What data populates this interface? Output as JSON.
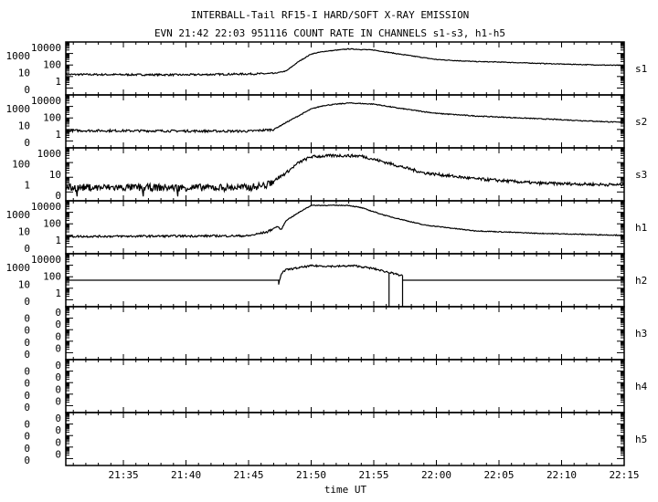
{
  "chart_data": {
    "type": "line",
    "title": "INTERBALL-Tail RF15-I HARD/SOFT X-RAY EMISSION",
    "subtitle": "EVN 21:42 22:03 951116  COUNT RATE IN CHANNELS s1-s3, h1-h5",
    "xlabel": "time UT",
    "x_unit": "minutes after 21:30 UT",
    "xlim": [
      0.4,
      45
    ],
    "x_ticks": [
      {
        "label": "21:35",
        "value": 5
      },
      {
        "label": "21:40",
        "value": 10
      },
      {
        "label": "21:45",
        "value": 15
      },
      {
        "label": "21:50",
        "value": 20
      },
      {
        "label": "21:55",
        "value": 25
      },
      {
        "label": "22:00",
        "value": 30
      },
      {
        "label": "22:05",
        "value": 35
      },
      {
        "label": "22:10",
        "value": 40
      },
      {
        "label": "22:15",
        "value": 45
      }
    ],
    "yscale": "log",
    "grid": false,
    "panels": [
      {
        "name": "s1",
        "ylim_top": 10000,
        "y_ticks": [
          "10000",
          "1000",
          "100",
          "10",
          "1",
          "0"
        ],
        "noise": 0.08,
        "points": [
          [
            0.4,
            15
          ],
          [
            10,
            14
          ],
          [
            17,
            18
          ],
          [
            18,
            30
          ],
          [
            19,
            200
          ],
          [
            20,
            900
          ],
          [
            21,
            1500
          ],
          [
            23,
            2500
          ],
          [
            25,
            2000
          ],
          [
            27,
            900
          ],
          [
            30,
            300
          ],
          [
            33,
            200
          ],
          [
            35,
            180
          ],
          [
            40,
            120
          ],
          [
            45,
            90
          ]
        ]
      },
      {
        "name": "s2",
        "ylim_top": 10000,
        "y_ticks": [
          "10000",
          "1000",
          "100",
          "10",
          "1",
          "0"
        ],
        "noise": 0.1,
        "points": [
          [
            0.4,
            8
          ],
          [
            15,
            7
          ],
          [
            17,
            10
          ],
          [
            18,
            40
          ],
          [
            20,
            600
          ],
          [
            21,
            1200
          ],
          [
            23,
            2000
          ],
          [
            25,
            1600
          ],
          [
            27,
            700
          ],
          [
            30,
            250
          ],
          [
            33,
            150
          ],
          [
            35,
            120
          ],
          [
            40,
            70
          ],
          [
            45,
            40
          ]
        ]
      },
      {
        "name": "s3",
        "ylim_top": 1000,
        "y_ticks": [
          "1000",
          "100",
          "10",
          "1",
          "0"
        ],
        "noise": 0.25,
        "points": [
          [
            0.4,
            2
          ],
          [
            15,
            2
          ],
          [
            16.5,
            3
          ],
          [
            18,
            20
          ],
          [
            19,
            100
          ],
          [
            20,
            250
          ],
          [
            22,
            300
          ],
          [
            24,
            280
          ],
          [
            26,
            100
          ],
          [
            29,
            20
          ],
          [
            33,
            8
          ],
          [
            38,
            4
          ],
          [
            45,
            3
          ]
        ]
      },
      {
        "name": "h1",
        "ylim_top": 10000,
        "y_ticks": [
          "10000",
          "1000",
          "100",
          "10",
          "1",
          "0"
        ],
        "noise": 0.09,
        "points": [
          [
            0.4,
            8
          ],
          [
            15,
            9
          ],
          [
            16.5,
            20
          ],
          [
            17.3,
            60
          ],
          [
            17.6,
            30
          ],
          [
            18,
            200
          ],
          [
            19.5,
            2000
          ],
          [
            20,
            4000
          ],
          [
            23,
            4000
          ],
          [
            24,
            2500
          ],
          [
            26,
            500
          ],
          [
            29,
            80
          ],
          [
            33,
            25
          ],
          [
            38,
            15
          ],
          [
            45,
            10
          ]
        ]
      },
      {
        "name": "h2",
        "ylim_top": 10000,
        "y_ticks": [
          "10000",
          "1000",
          "100",
          "10",
          "1",
          "0"
        ],
        "noise": 0.08,
        "baseline": 50,
        "points": [
          [
            17.4,
            20
          ],
          [
            17.6,
            200
          ],
          [
            18,
            400
          ],
          [
            20,
            900
          ],
          [
            22,
            800
          ],
          [
            23.5,
            900
          ],
          [
            25,
            500
          ],
          [
            26.5,
            200
          ],
          [
            27.3,
            120
          ]
        ]
      },
      {
        "name": "h3",
        "ylim_top": 10000,
        "y_ticks": [
          "0",
          "0",
          "0",
          "0",
          "0",
          "0",
          "0",
          "0"
        ],
        "points": []
      },
      {
        "name": "h4",
        "ylim_top": 10000,
        "y_ticks": [
          "0",
          "0",
          "0",
          "0",
          "0",
          "0",
          "0",
          "0"
        ],
        "points": []
      },
      {
        "name": "h5",
        "ylim_top": 10000,
        "y_ticks": [
          "0",
          "0",
          "0",
          "0",
          "0",
          "0",
          "0",
          "0"
        ],
        "points": []
      }
    ]
  }
}
